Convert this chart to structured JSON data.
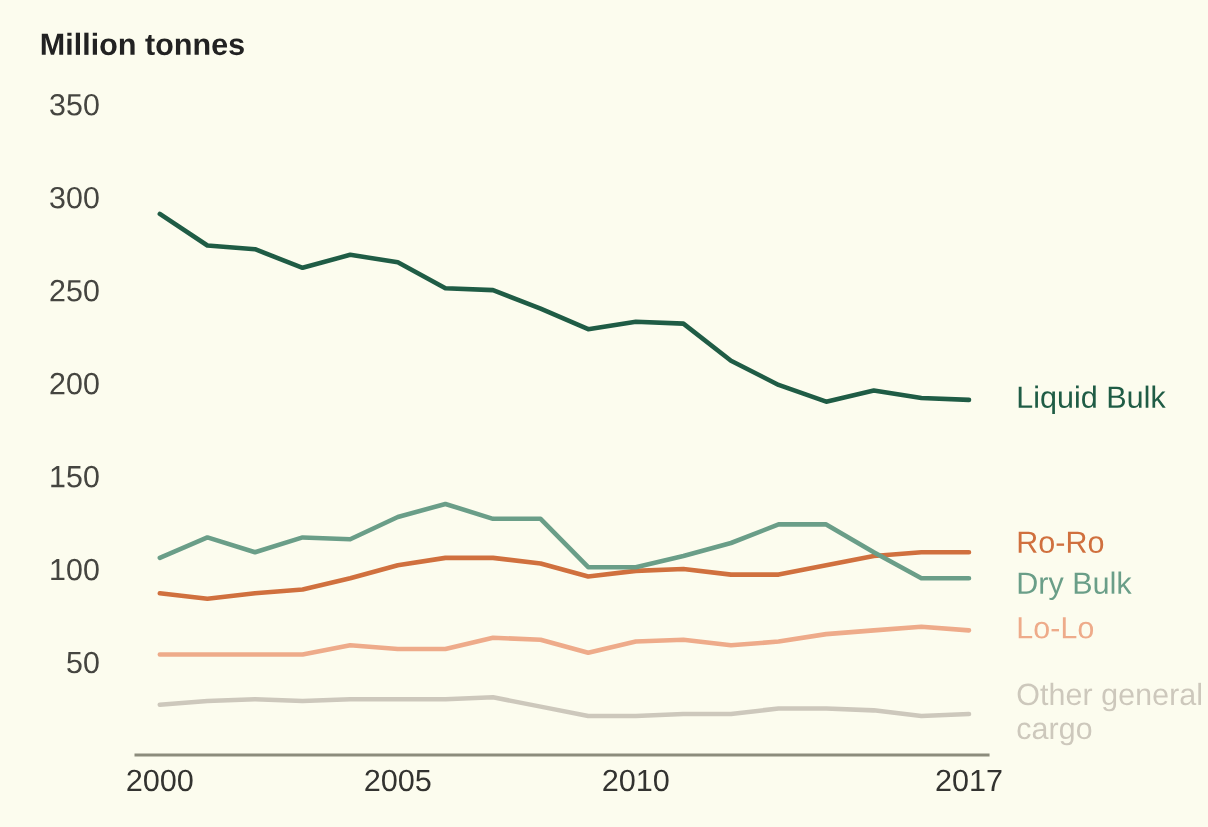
{
  "chart_data": {
    "type": "line",
    "ylabel": "Million tonnes",
    "x": [
      2000,
      2001,
      2002,
      2003,
      2004,
      2005,
      2006,
      2007,
      2008,
      2009,
      2010,
      2011,
      2012,
      2013,
      2014,
      2015,
      2016,
      2017
    ],
    "xlim": [
      1999.5,
      2017.4
    ],
    "xticks": [
      2000,
      2005,
      2010,
      2017
    ],
    "ylim": [
      0,
      350
    ],
    "yticks": [
      50,
      100,
      150,
      200,
      250,
      300,
      350
    ],
    "line_style": "solid",
    "series": [
      {
        "name": "Liquid Bulk",
        "color": "#1f5c45",
        "values": [
          291,
          274,
          272,
          262,
          269,
          265,
          251,
          250,
          240,
          229,
          233,
          232,
          212,
          199,
          190,
          196,
          192,
          191
        ]
      },
      {
        "name": "Ro-Ro",
        "color": "#d0703e",
        "values": [
          87,
          84,
          87,
          89,
          95,
          102,
          106,
          106,
          103,
          96,
          99,
          100,
          97,
          97,
          102,
          107,
          109,
          109
        ]
      },
      {
        "name": "Dry Bulk",
        "color": "#6a9e88",
        "values": [
          106,
          117,
          109,
          117,
          116,
          128,
          135,
          127,
          127,
          101,
          101,
          107,
          114,
          124,
          124,
          109,
          95,
          95
        ]
      },
      {
        "name": "Lo-Lo",
        "color": "#eeab8a",
        "values": [
          54,
          54,
          54,
          54,
          59,
          57,
          57,
          63,
          62,
          55,
          61,
          62,
          59,
          61,
          65,
          67,
          69,
          67
        ]
      },
      {
        "name": "Other general cargo",
        "color": "#cdc8bc",
        "values": [
          27,
          29,
          30,
          29,
          30,
          30,
          30,
          31,
          26,
          21,
          21,
          22,
          22,
          25,
          25,
          24,
          21,
          22
        ]
      }
    ]
  }
}
